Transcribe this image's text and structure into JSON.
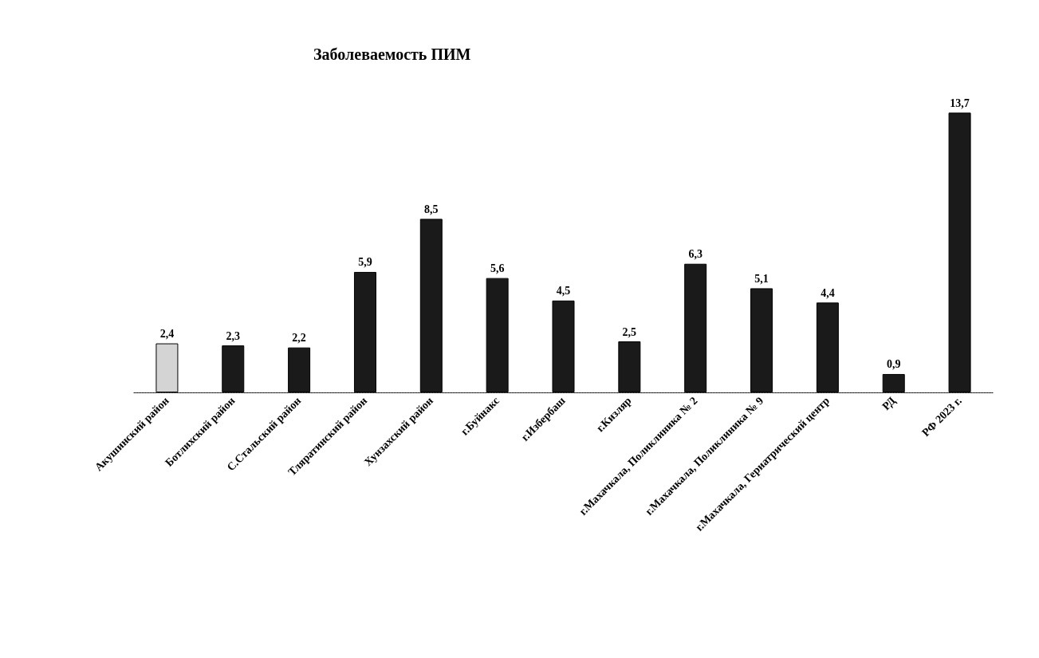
{
  "chart_data": {
    "type": "bar",
    "title": "Заболеваемость ПИМ",
    "categories": [
      "Акушинский район",
      "Ботлихский район",
      "С.Стальский район",
      "Тляратинский район",
      "Хунзахский район",
      "г.Буйнакс",
      "г.Избербаш",
      "г.Кизляр",
      "г.Махачкала, Поликлиника № 2",
      "г.Махачкала, Поликлиника № 9",
      "г.Махачкала, Гериатрический центр",
      "РД",
      "РФ 2023 г."
    ],
    "values": [
      2.4,
      2.3,
      2.2,
      5.9,
      8.5,
      5.6,
      4.5,
      2.5,
      6.3,
      5.1,
      4.4,
      0.9,
      13.7
    ],
    "colors": [
      "#d4d4d4",
      "#1a1a1a",
      "#1a1a1a",
      "#1a1a1a",
      "#1a1a1a",
      "#1a1a1a",
      "#1a1a1a",
      "#1a1a1a",
      "#1a1a1a",
      "#1a1a1a",
      "#1a1a1a",
      "#1a1a1a",
      "#1a1a1a"
    ],
    "value_labels": [
      "2,4",
      "2,3",
      "2,2",
      "5,9",
      "8,5",
      "5,6",
      "4,5",
      "2,5",
      "6,3",
      "5,1",
      "4,4",
      "0,9",
      "13,7"
    ]
  }
}
